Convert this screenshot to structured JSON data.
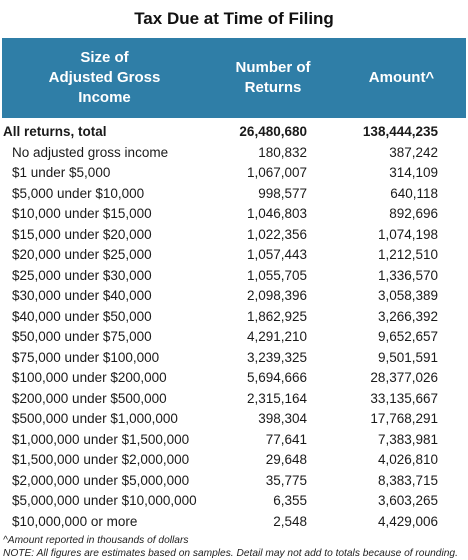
{
  "title": "Tax Due at Time of Filing",
  "header": {
    "col1_line1": "Size of",
    "col1_line2": "Adjusted Gross",
    "col1_line3": "Income",
    "col2_line1": "Number of",
    "col2_line2": "Returns",
    "col3": "Amount^"
  },
  "total": {
    "label": "All returns, total",
    "returns": "26,480,680",
    "amount": "138,444,235"
  },
  "rows": [
    {
      "label": "No adjusted gross income",
      "returns": "180,832",
      "amount": "387,242"
    },
    {
      "label": "$1 under $5,000",
      "returns": "1,067,007",
      "amount": "314,109"
    },
    {
      "label": "$5,000 under $10,000",
      "returns": "998,577",
      "amount": "640,118"
    },
    {
      "label": "$10,000 under $15,000",
      "returns": "1,046,803",
      "amount": "892,696"
    },
    {
      "label": "$15,000 under $20,000",
      "returns": "1,022,356",
      "amount": "1,074,198"
    },
    {
      "label": "$20,000 under $25,000",
      "returns": "1,057,443",
      "amount": "1,212,510"
    },
    {
      "label": "$25,000 under $30,000",
      "returns": "1,055,705",
      "amount": "1,336,570"
    },
    {
      "label": "$30,000 under $40,000",
      "returns": "2,098,396",
      "amount": "3,058,389"
    },
    {
      "label": "$40,000 under $50,000",
      "returns": "1,862,925",
      "amount": "3,266,392"
    },
    {
      "label": "$50,000 under $75,000",
      "returns": "4,291,210",
      "amount": "9,652,657"
    },
    {
      "label": "$75,000 under $100,000",
      "returns": "3,239,325",
      "amount": "9,501,591"
    },
    {
      "label": "$100,000 under $200,000",
      "returns": "5,694,666",
      "amount": "28,377,026"
    },
    {
      "label": "$200,000 under $500,000",
      "returns": "2,315,164",
      "amount": "33,135,667"
    },
    {
      "label": "$500,000 under $1,000,000",
      "returns": "398,304",
      "amount": "17,768,291"
    },
    {
      "label": "$1,000,000 under $1,500,000",
      "returns": "77,641",
      "amount": "7,383,981"
    },
    {
      "label": "$1,500,000 under $2,000,000",
      "returns": "29,648",
      "amount": "4,026,810"
    },
    {
      "label": "$2,000,000 under $5,000,000",
      "returns": "35,775",
      "amount": "8,383,715"
    },
    {
      "label": "$5,000,000 under $10,000,000",
      "returns": "6,355",
      "amount": "3,603,265"
    },
    {
      "label": "$10,000,000 or more",
      "returns": "2,548",
      "amount": "4,429,006"
    }
  ],
  "notes": {
    "note1": "^Amount reported in thousands of dollars",
    "note2": "NOTE: All figures are estimates based on samples. Detail may not add to totals because of rounding."
  }
}
